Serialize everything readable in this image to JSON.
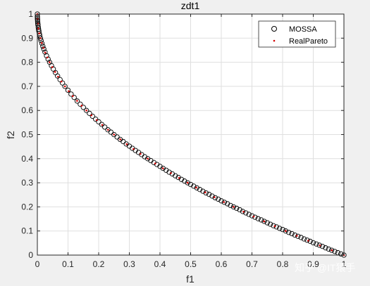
{
  "chart_data": {
    "type": "scatter",
    "title": "zdt1",
    "xlabel": "f1",
    "ylabel": "f2",
    "xlim": [
      0,
      1
    ],
    "ylim": [
      0,
      1
    ],
    "xticks": [
      "0",
      "0.1",
      "0.2",
      "0.3",
      "0.4",
      "0.5",
      "0.6",
      "0.7",
      "0.8",
      "0.9",
      "1"
    ],
    "yticks": [
      "0",
      "0.1",
      "0.2",
      "0.3",
      "0.4",
      "0.5",
      "0.6",
      "0.7",
      "0.8",
      "0.9",
      "1"
    ],
    "grid": true,
    "legend_position": "top-right",
    "series": [
      {
        "name": "MOSSA",
        "marker": "open-circle",
        "color": "#000000",
        "relation": "f2 = 1 - sqrt(f1)",
        "x": [
          0.0,
          0.0001,
          0.0003,
          0.0006,
          0.001,
          0.0015,
          0.002,
          0.003,
          0.004,
          0.005,
          0.0065,
          0.008,
          0.01,
          0.012,
          0.015,
          0.018,
          0.021,
          0.025,
          0.03,
          0.035,
          0.04,
          0.046,
          0.052,
          0.059,
          0.066,
          0.074,
          0.082,
          0.09,
          0.1,
          0.11,
          0.12,
          0.13,
          0.14,
          0.15,
          0.16,
          0.17,
          0.18,
          0.19,
          0.2,
          0.21,
          0.22,
          0.23,
          0.24,
          0.25,
          0.26,
          0.27,
          0.28,
          0.29,
          0.3,
          0.31,
          0.32,
          0.33,
          0.34,
          0.35,
          0.36,
          0.37,
          0.38,
          0.39,
          0.4,
          0.41,
          0.42,
          0.43,
          0.44,
          0.45,
          0.46,
          0.47,
          0.48,
          0.49,
          0.5,
          0.51,
          0.52,
          0.53,
          0.54,
          0.55,
          0.56,
          0.57,
          0.58,
          0.59,
          0.6,
          0.61,
          0.62,
          0.63,
          0.64,
          0.65,
          0.66,
          0.67,
          0.68,
          0.69,
          0.7,
          0.71,
          0.72,
          0.73,
          0.74,
          0.75,
          0.76,
          0.77,
          0.78,
          0.79,
          0.8,
          0.81,
          0.82,
          0.83,
          0.84,
          0.85,
          0.86,
          0.87,
          0.88,
          0.89,
          0.9,
          0.91,
          0.92,
          0.93,
          0.94,
          0.95,
          0.96,
          0.97,
          0.98,
          0.99,
          1.0
        ],
        "y": [
          1.0,
          0.99,
          0.983,
          0.976,
          0.968,
          0.961,
          0.955,
          0.945,
          0.937,
          0.929,
          0.919,
          0.911,
          0.9,
          0.89,
          0.878,
          0.866,
          0.855,
          0.842,
          0.827,
          0.813,
          0.8,
          0.786,
          0.772,
          0.757,
          0.743,
          0.728,
          0.714,
          0.7,
          0.684,
          0.668,
          0.654,
          0.639,
          0.626,
          0.613,
          0.6,
          0.588,
          0.576,
          0.564,
          0.553,
          0.542,
          0.531,
          0.52,
          0.51,
          0.5,
          0.49,
          0.48,
          0.471,
          0.461,
          0.452,
          0.443,
          0.434,
          0.426,
          0.417,
          0.408,
          0.4,
          0.392,
          0.384,
          0.376,
          0.368,
          0.36,
          0.352,
          0.344,
          0.337,
          0.329,
          0.322,
          0.314,
          0.307,
          0.3,
          0.293,
          0.286,
          0.279,
          0.272,
          0.265,
          0.258,
          0.252,
          0.245,
          0.238,
          0.232,
          0.225,
          0.219,
          0.213,
          0.206,
          0.2,
          0.194,
          0.188,
          0.181,
          0.175,
          0.169,
          0.163,
          0.157,
          0.151,
          0.146,
          0.14,
          0.134,
          0.128,
          0.122,
          0.117,
          0.111,
          0.106,
          0.1,
          0.094,
          0.089,
          0.083,
          0.078,
          0.073,
          0.067,
          0.062,
          0.057,
          0.051,
          0.046,
          0.041,
          0.036,
          0.03,
          0.025,
          0.02,
          0.015,
          0.01,
          0.005,
          0.0
        ]
      },
      {
        "name": "RealPareto",
        "marker": "dot",
        "color": "#d40000",
        "relation": "f2 = 1 - sqrt(f1)",
        "x": [
          0.0,
          0.0004,
          0.0016,
          0.0036,
          0.0064,
          0.01,
          0.0144,
          0.0196,
          0.0256,
          0.0324,
          0.04,
          0.0484,
          0.0576,
          0.0676,
          0.0784,
          0.09,
          0.1024,
          0.1156,
          0.1296,
          0.1444,
          0.16,
          0.1764,
          0.1936,
          0.2116,
          0.2304,
          0.25,
          0.2704,
          0.2916,
          0.3136,
          0.3364,
          0.36,
          0.3844,
          0.4096,
          0.4356,
          0.4624,
          0.49,
          0.5184,
          0.5476,
          0.5776,
          0.6084,
          0.64,
          0.6724,
          0.7056,
          0.7396,
          0.7744,
          0.81,
          0.8464,
          0.8836,
          0.9216,
          0.9604,
          1.0
        ],
        "y": [
          1.0,
          0.98,
          0.96,
          0.94,
          0.92,
          0.9,
          0.88,
          0.86,
          0.84,
          0.82,
          0.8,
          0.78,
          0.76,
          0.74,
          0.72,
          0.7,
          0.68,
          0.66,
          0.64,
          0.62,
          0.6,
          0.58,
          0.56,
          0.54,
          0.52,
          0.5,
          0.48,
          0.46,
          0.44,
          0.42,
          0.4,
          0.38,
          0.36,
          0.34,
          0.32,
          0.3,
          0.28,
          0.26,
          0.24,
          0.22,
          0.2,
          0.18,
          0.16,
          0.14,
          0.12,
          0.1,
          0.08,
          0.06,
          0.04,
          0.02,
          0.0
        ]
      }
    ]
  },
  "watermark": "知乎 @IT猿手"
}
